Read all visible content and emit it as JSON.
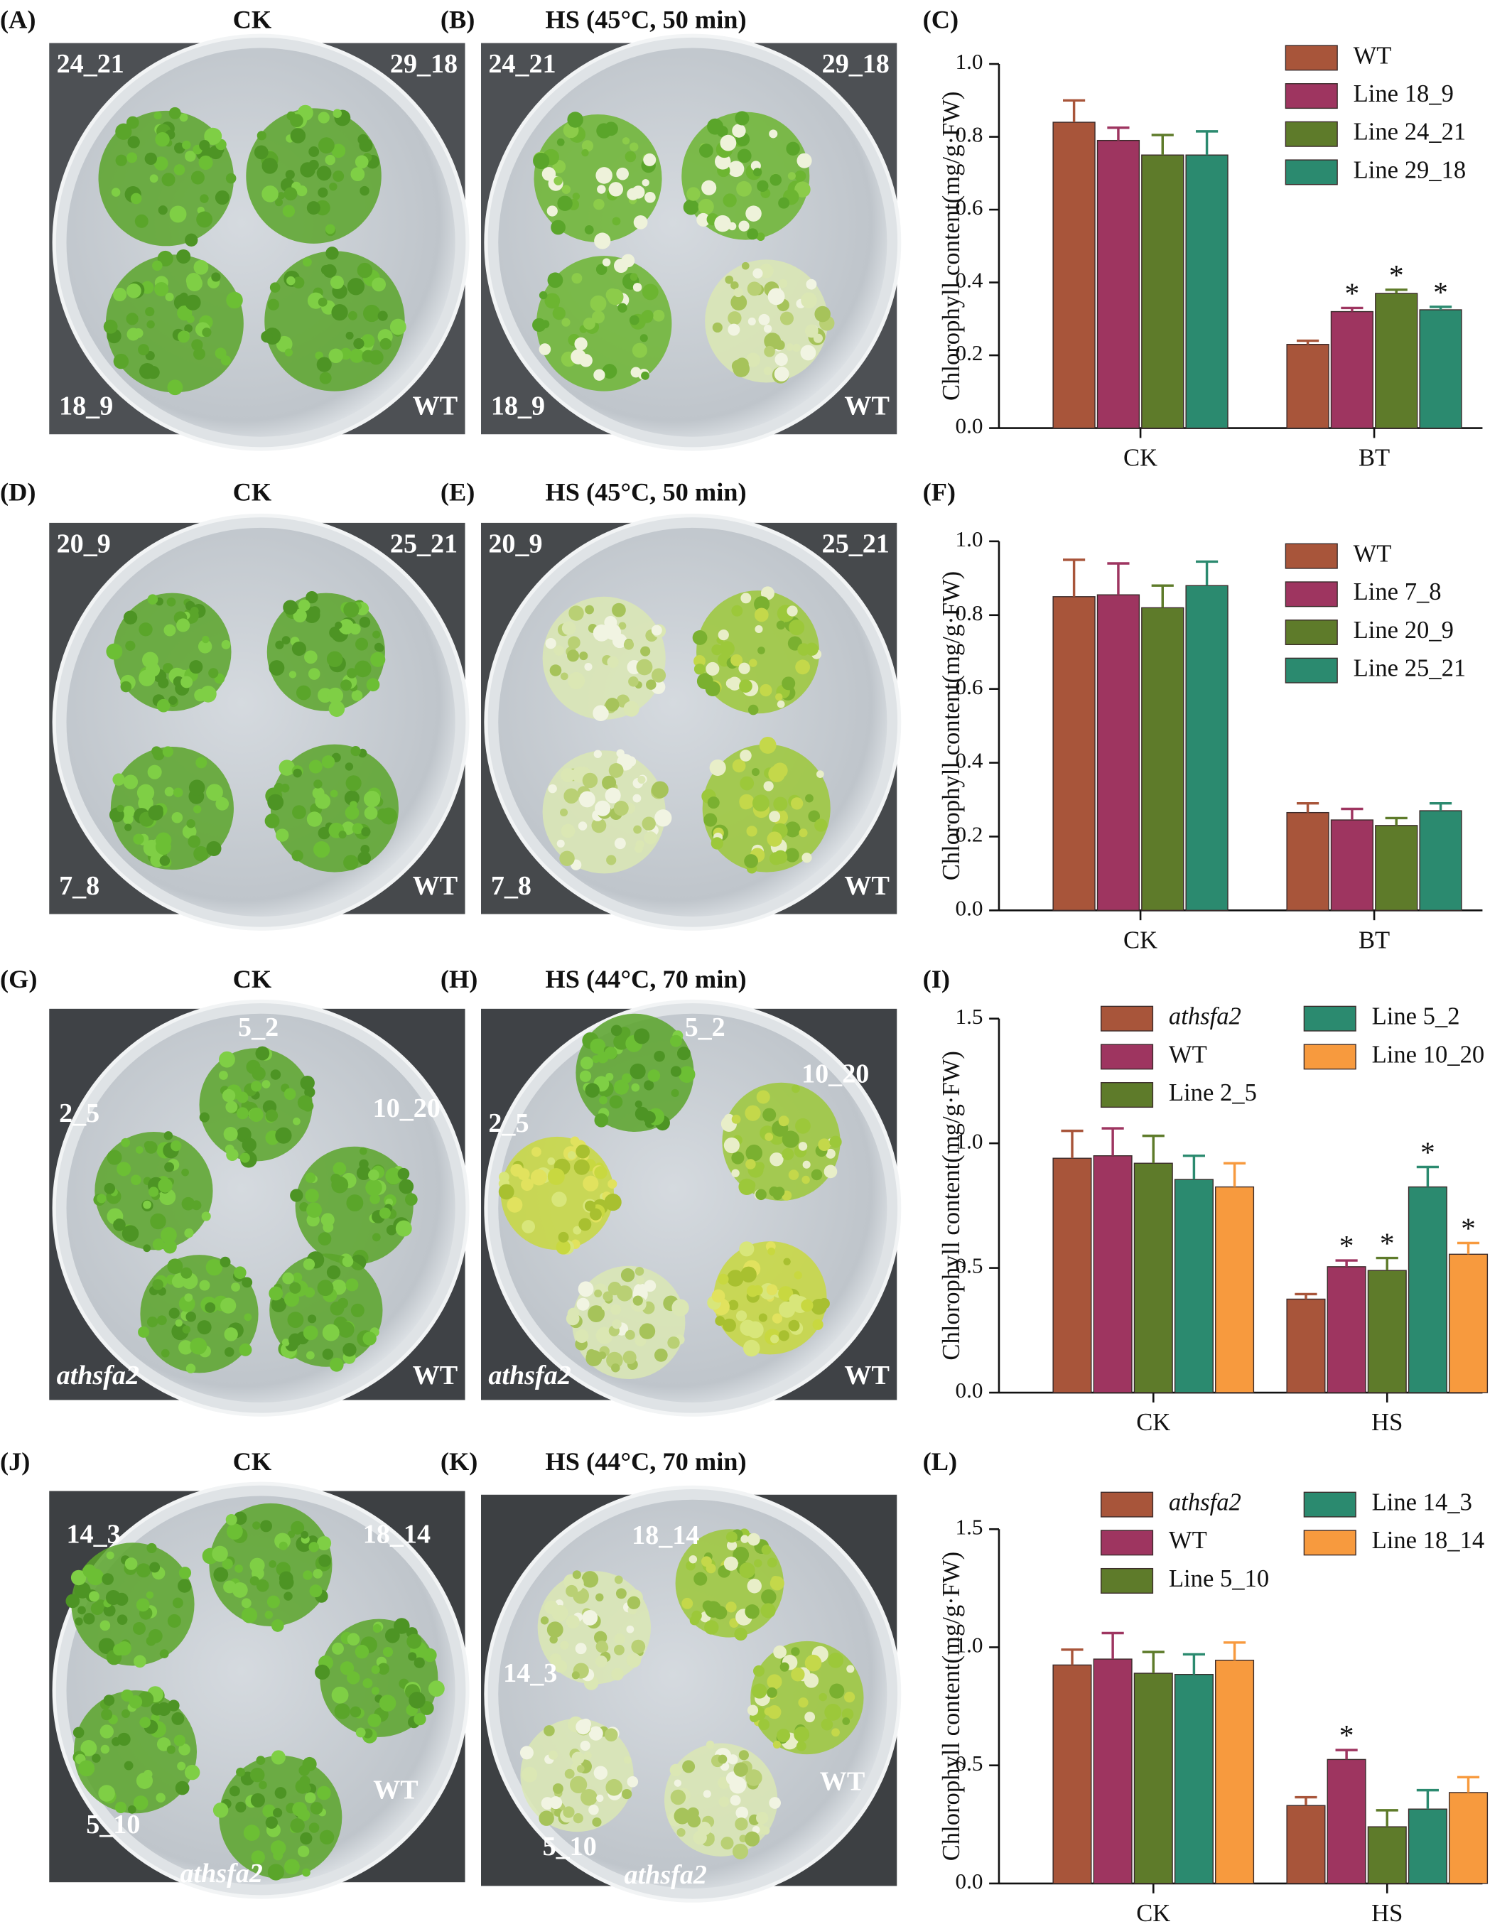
{
  "panels": [
    {
      "label": "(A)",
      "title": "CK",
      "plates": [
        {
          "text": "24_21"
        },
        {
          "text": "29_18"
        },
        {
          "text": "18_9"
        },
        {
          "text": "WT"
        }
      ]
    },
    {
      "label": "(B)",
      "title": "HS (45°C, 50 min)",
      "plates": [
        {
          "text": "24_21"
        },
        {
          "text": "29_18"
        },
        {
          "text": "18_9"
        },
        {
          "text": "WT"
        }
      ]
    },
    {
      "label": "(D)",
      "title": "CK",
      "plates": [
        {
          "text": "20_9"
        },
        {
          "text": "25_21"
        },
        {
          "text": "7_8"
        },
        {
          "text": "WT"
        }
      ]
    },
    {
      "label": "(E)",
      "title": "HS (45°C, 50 min)",
      "plates": [
        {
          "text": "20_9"
        },
        {
          "text": "25_21"
        },
        {
          "text": "7_8"
        },
        {
          "text": "WT"
        }
      ]
    },
    {
      "label": "(G)",
      "title": "CK",
      "plates": [
        {
          "text": "5_2"
        },
        {
          "text": "2_5"
        },
        {
          "text": "10_20"
        },
        {
          "text": "athsfa2",
          "style": "italic"
        },
        {
          "text": "WT"
        }
      ]
    },
    {
      "label": "(H)",
      "title": "HS (44°C, 70 min)",
      "plates": [
        {
          "text": "5_2"
        },
        {
          "text": "2_5"
        },
        {
          "text": "10_20"
        },
        {
          "text": "athsfa2",
          "style": "italic"
        },
        {
          "text": "WT"
        }
      ]
    },
    {
      "label": "(J)",
      "title": "CK",
      "plates": [
        {
          "text": "14_3"
        },
        {
          "text": "18_14"
        },
        {
          "text": "5_10"
        },
        {
          "text": "athsfa2",
          "style": "italic"
        },
        {
          "text": "WT"
        }
      ]
    },
    {
      "label": "(K)",
      "title": "HS (44°C, 70 min)",
      "plates": [
        {
          "text": "18_14"
        },
        {
          "text": "14_3"
        },
        {
          "text": "5_10"
        },
        {
          "text": "athsfa2",
          "style": "italic"
        },
        {
          "text": "WT"
        }
      ]
    }
  ],
  "chart_data": [
    {
      "type": "bar",
      "label": "(C)",
      "ylabel": "Chlorophyll content(mg/g·FW)",
      "categories": [
        "CK",
        "BT"
      ],
      "ylim": [
        0,
        1.0
      ],
      "yticks": [
        {
          "value": 0,
          "label": "0.0"
        },
        0.2,
        0.4,
        0.6,
        0.8,
        {
          "value": 1.0,
          "label": "1.0"
        }
      ],
      "series": [
        {
          "name": "WT",
          "color": "#a8553a",
          "values": [
            0.84,
            0.23
          ],
          "errors": [
            0.06,
            0.01
          ],
          "annotations": [
            null,
            null
          ]
        },
        {
          "name": "Line 18_9",
          "color": "#9e3560",
          "values": [
            0.79,
            0.32
          ],
          "errors": [
            0.035,
            0.01
          ],
          "annotations": [
            null,
            "*"
          ]
        },
        {
          "name": "Line 24_21",
          "color": "#5e7b2a",
          "values": [
            0.75,
            0.37
          ],
          "errors": [
            0.055,
            0.01
          ],
          "annotations": [
            null,
            "*"
          ]
        },
        {
          "name": "Line 29_18",
          "color": "#2b8a6f",
          "values": [
            0.75,
            0.325
          ],
          "errors": [
            0.065,
            0.008
          ],
          "annotations": [
            null,
            "*"
          ]
        }
      ]
    },
    {
      "type": "bar",
      "label": "(F)",
      "ylabel": "Chlorophyll content(mg/g·FW)",
      "categories": [
        "CK",
        "BT"
      ],
      "ylim": [
        0,
        1.0
      ],
      "yticks": [
        {
          "value": 0,
          "label": "0.0"
        },
        0.2,
        0.4,
        0.6,
        0.8,
        {
          "value": 1.0,
          "label": "1.0"
        }
      ],
      "series": [
        {
          "name": "WT",
          "color": "#a8553a",
          "values": [
            0.85,
            0.265
          ],
          "errors": [
            0.1,
            0.025
          ]
        },
        {
          "name": "Line 7_8",
          "color": "#9e3560",
          "values": [
            0.855,
            0.245
          ],
          "errors": [
            0.085,
            0.03
          ]
        },
        {
          "name": "Line 20_9",
          "color": "#5e7b2a",
          "values": [
            0.82,
            0.23
          ],
          "errors": [
            0.06,
            0.02
          ]
        },
        {
          "name": "Line 25_21",
          "color": "#2b8a6f",
          "values": [
            0.88,
            0.27
          ],
          "errors": [
            0.065,
            0.02
          ]
        }
      ]
    },
    {
      "type": "bar",
      "label": "(I)",
      "ylabel": "Chlorophyll content(mg/g·FW)",
      "categories": [
        "CK",
        "HS"
      ],
      "ylim": [
        0,
        1.5
      ],
      "yticks": [
        {
          "value": 0,
          "label": "0.0"
        },
        0.5,
        {
          "value": 1.0,
          "label": "1.0"
        },
        1.5
      ],
      "series": [
        {
          "name": "athsfa2",
          "font_style": "italic",
          "color": "#a8553a",
          "values": [
            0.94,
            0.375
          ],
          "errors": [
            0.11,
            0.02
          ],
          "annotations": [
            null,
            null
          ]
        },
        {
          "name": "WT",
          "color": "#9e3560",
          "values": [
            0.95,
            0.505
          ],
          "errors": [
            0.11,
            0.025
          ],
          "annotations": [
            null,
            "*"
          ]
        },
        {
          "name": "Line 2_5",
          "color": "#5e7b2a",
          "values": [
            0.92,
            0.49
          ],
          "errors": [
            0.11,
            0.05
          ],
          "annotations": [
            null,
            "*"
          ]
        },
        {
          "name": "Line 5_2",
          "color": "#2b8a6f",
          "values": [
            0.855,
            0.825
          ],
          "errors": [
            0.095,
            0.08
          ],
          "annotations": [
            null,
            "*"
          ]
        },
        {
          "name": "Line 10_20",
          "color": "#f79a3e",
          "values": [
            0.825,
            0.555
          ],
          "errors": [
            0.095,
            0.045
          ],
          "annotations": [
            null,
            "*"
          ]
        }
      ]
    },
    {
      "type": "bar",
      "label": "(L)",
      "ylabel": "Chlorophyll content(mg/g·FW)",
      "categories": [
        "CK",
        "HS"
      ],
      "ylim": [
        0,
        1.5
      ],
      "yticks": [
        {
          "value": 0,
          "label": "0.0"
        },
        0.5,
        {
          "value": 1.0,
          "label": "1.0"
        },
        1.5
      ],
      "series": [
        {
          "name": "athsfa2",
          "font_style": "italic",
          "color": "#a8553a",
          "values": [
            0.925,
            0.33
          ],
          "errors": [
            0.065,
            0.035
          ],
          "annotations": [
            null,
            null
          ]
        },
        {
          "name": "WT",
          "color": "#9e3560",
          "values": [
            0.95,
            0.525
          ],
          "errors": [
            0.11,
            0.04
          ],
          "annotations": [
            null,
            "*"
          ]
        },
        {
          "name": "Line 5_10",
          "color": "#5e7b2a",
          "values": [
            0.89,
            0.24
          ],
          "errors": [
            0.09,
            0.07
          ],
          "annotations": [
            null,
            null
          ]
        },
        {
          "name": "Line 14_3",
          "color": "#2b8a6f",
          "values": [
            0.885,
            0.315
          ],
          "errors": [
            0.085,
            0.08
          ],
          "annotations": [
            null,
            null
          ]
        },
        {
          "name": "Line 18_14",
          "color": "#f79a3e",
          "values": [
            0.945,
            0.385
          ],
          "errors": [
            0.075,
            0.065
          ],
          "annotations": [
            null,
            null
          ]
        }
      ]
    }
  ]
}
